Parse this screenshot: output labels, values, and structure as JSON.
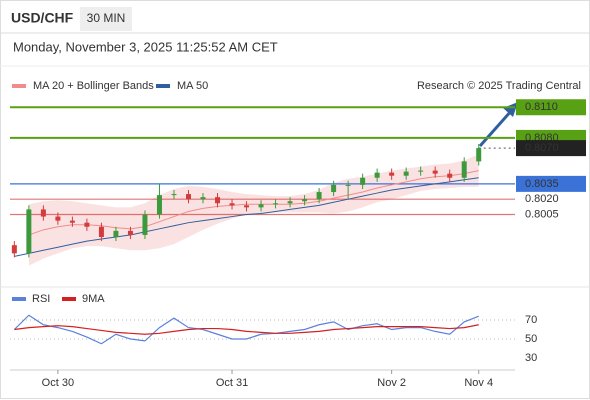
{
  "header": {
    "symbol": "USD/CHF",
    "interval": "30 MIN",
    "datetime": "Monday, November 3, 2025 11:25:52 AM CET",
    "credit": "Research © 2025 Trading Central"
  },
  "chart_data": [
    {
      "type": "candlestick",
      "x": [
        0,
        1,
        2,
        3,
        4,
        5,
        6,
        7,
        8,
        9,
        10,
        11,
        12,
        13,
        14,
        15,
        16,
        17,
        18,
        19,
        20,
        21,
        22,
        23,
        24,
        25,
        26,
        27,
        28,
        29,
        30,
        31,
        32
      ],
      "open": [
        0.7975,
        0.7967,
        0.801,
        0.8003,
        0.7999,
        0.7997,
        0.7993,
        0.7983,
        0.7989,
        0.7985,
        0.8005,
        0.8024,
        0.8025,
        0.802,
        0.8022,
        0.8016,
        0.8014,
        0.8012,
        0.8015,
        0.8016,
        0.8018,
        0.802,
        0.8027,
        0.8034,
        0.8034,
        0.8041,
        0.8046,
        0.8043,
        0.8047,
        0.8048,
        0.8045,
        0.8041,
        0.8057
      ],
      "high": [
        0.7979,
        0.8014,
        0.8014,
        0.8007,
        0.8003,
        0.8001,
        0.7997,
        0.7993,
        0.7993,
        0.8009,
        0.8035,
        0.8029,
        0.8029,
        0.8026,
        0.8026,
        0.802,
        0.8018,
        0.8019,
        0.802,
        0.8022,
        0.8024,
        0.8031,
        0.8038,
        0.8038,
        0.8045,
        0.805,
        0.805,
        0.8051,
        0.8052,
        0.8052,
        0.8049,
        0.8061,
        0.8074
      ],
      "low": [
        0.7963,
        0.7963,
        0.7999,
        0.7995,
        0.7993,
        0.7989,
        0.7979,
        0.7979,
        0.7981,
        0.7981,
        0.8001,
        0.802,
        0.8016,
        0.8016,
        0.8012,
        0.801,
        0.8008,
        0.8008,
        0.8011,
        0.8012,
        0.8014,
        0.8016,
        0.8023,
        0.802,
        0.803,
        0.8037,
        0.8039,
        0.8039,
        0.8043,
        0.8041,
        0.8037,
        0.8037,
        0.8053
      ],
      "close": [
        0.7967,
        0.801,
        0.8003,
        0.7999,
        0.7997,
        0.7993,
        0.7983,
        0.7989,
        0.7985,
        0.8005,
        0.8024,
        0.8025,
        0.802,
        0.8022,
        0.8016,
        0.8014,
        0.8012,
        0.8015,
        0.8016,
        0.8018,
        0.802,
        0.8027,
        0.8034,
        0.8034,
        0.8041,
        0.8046,
        0.8043,
        0.8047,
        0.8048,
        0.8045,
        0.8041,
        0.8057,
        0.807
      ],
      "up_color": "#3c9a3c",
      "down_color": "#d43c3c",
      "series": [
        {
          "name": "MA 20 + Bollinger Bands",
          "color": "#f08c8c",
          "values": [
            null,
            0.7985,
            0.799,
            0.7993,
            0.7995,
            0.7995,
            0.7994,
            0.7992,
            0.7991,
            0.7993,
            0.7998,
            0.8003,
            0.8008,
            0.8011,
            0.8013,
            0.8014,
            0.8015,
            0.8015,
            0.8015,
            0.8015,
            0.8016,
            0.8018,
            0.8021,
            0.8024,
            0.8027,
            0.8031,
            0.8034,
            0.8037,
            0.804,
            0.8042,
            0.8043,
            0.8045,
            0.8048
          ],
          "upper": [
            null,
            0.8015,
            0.8018,
            0.8019,
            0.8018,
            0.8016,
            0.8014,
            0.8012,
            0.8012,
            0.8016,
            0.8024,
            0.803,
            0.8033,
            0.8032,
            0.803,
            0.8027,
            0.8025,
            0.8024,
            0.8023,
            0.8023,
            0.8025,
            0.8029,
            0.8036,
            0.804,
            0.8042,
            0.8045,
            0.8048,
            0.805,
            0.8052,
            0.8054,
            0.8055,
            0.8058,
            0.8064
          ],
          "lower": [
            null,
            0.7955,
            0.7962,
            0.7967,
            0.7972,
            0.7974,
            0.7974,
            0.7972,
            0.797,
            0.797,
            0.7972,
            0.7976,
            0.7983,
            0.799,
            0.7996,
            0.8001,
            0.8005,
            0.8006,
            0.8007,
            0.8007,
            0.8007,
            0.8007,
            0.8006,
            0.8008,
            0.8012,
            0.8017,
            0.802,
            0.8024,
            0.8028,
            0.803,
            0.8031,
            0.8032,
            0.8032
          ]
        },
        {
          "name": "MA 50",
          "color": "#2f5f9e",
          "values": [
            0.7964,
            0.7967,
            0.797,
            0.7973,
            0.7976,
            0.7979,
            0.7981,
            0.7983,
            0.7985,
            0.7988,
            0.7991,
            0.7994,
            0.7997,
            0.7999,
            0.8001,
            0.8003,
            0.8005,
            0.8006,
            0.8008,
            0.801,
            0.8012,
            0.8014,
            0.8017,
            0.802,
            0.8023,
            0.8026,
            0.8029,
            0.8031,
            0.8033,
            0.8035,
            0.8037,
            0.8039,
            0.8041
          ]
        }
      ],
      "levels": [
        {
          "value": 0.811,
          "label": "0.8110",
          "color": "#58a014"
        },
        {
          "value": 0.808,
          "label": "0.8080",
          "color": "#58a014"
        },
        {
          "value": 0.807,
          "label": "0.8070",
          "color": "#222222"
        },
        {
          "value": 0.8035,
          "label": "0.8035",
          "color": "#3a72d8"
        },
        {
          "value": 0.802,
          "label": "0.8020",
          "color": "#d43c3c"
        },
        {
          "value": 0.8005,
          "label": "0.8005",
          "color": "#d43c3c"
        }
      ],
      "xlim": [
        -0.3,
        34.5
      ],
      "ylim": [
        0.7936,
        0.8122
      ],
      "xticks": [
        {
          "value": 3,
          "label": "Oct 30"
        },
        {
          "value": 15,
          "label": "Oct 31"
        },
        {
          "value": 26,
          "label": "Nov 2"
        },
        {
          "value": 32,
          "label": "Nov 4"
        }
      ]
    },
    {
      "type": "line",
      "x": [
        0,
        1,
        2,
        3,
        4,
        5,
        6,
        7,
        8,
        9,
        10,
        11,
        12,
        13,
        14,
        15,
        16,
        17,
        18,
        19,
        20,
        21,
        22,
        23,
        24,
        25,
        26,
        27,
        28,
        29,
        30,
        31,
        32
      ],
      "series": [
        {
          "name": "RSI",
          "color": "#5a82dc",
          "values": [
            60,
            75,
            65,
            62,
            58,
            52,
            45,
            55,
            50,
            48,
            62,
            72,
            62,
            60,
            55,
            50,
            50,
            55,
            56,
            58,
            60,
            65,
            68,
            60,
            64,
            66,
            60,
            62,
            62,
            58,
            55,
            68,
            74
          ]
        },
        {
          "name": "9MA",
          "color": "#d42020",
          "values": [
            60,
            62,
            63,
            64,
            63,
            61,
            59,
            57,
            56,
            55,
            56,
            58,
            60,
            61,
            61,
            60,
            58,
            57,
            56,
            56,
            57,
            58,
            60,
            61,
            62,
            63,
            63,
            63,
            63,
            62,
            61,
            62,
            65
          ]
        }
      ],
      "xlim": [
        -0.3,
        34.5
      ],
      "ylim": [
        20,
        100
      ],
      "yticks": [
        30,
        50,
        70
      ],
      "grid": true
    }
  ]
}
